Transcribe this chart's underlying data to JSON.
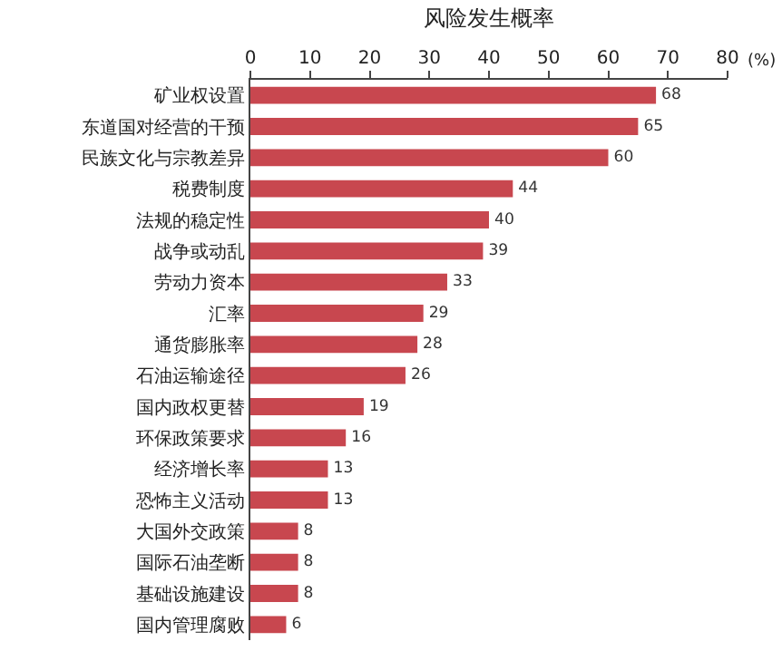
{
  "chart_data": {
    "type": "bar",
    "orientation": "horizontal",
    "title": "风险发生概率",
    "xlabel": "(%)",
    "categories": [
      "矿业权设置",
      "东道国对经营的干预",
      "民族文化与宗教差异",
      "税费制度",
      "法规的稳定性",
      "战争或动乱",
      "劳动力资本",
      "汇率",
      "通货膨胀率",
      "石油运输途径",
      "国内政权更替",
      "环保政策要求",
      "经济增长率",
      "恐怖主义活动",
      "大国外交政策",
      "国际石油垄断",
      "基础设施建设",
      "国内管理腐败"
    ],
    "values": [
      68,
      65,
      60,
      44,
      40,
      39,
      33,
      29,
      28,
      26,
      19,
      16,
      13,
      13,
      8,
      8,
      8,
      6
    ],
    "color": "#c8474f",
    "xlim": [
      0,
      80
    ],
    "xticks": [
      0,
      10,
      20,
      30,
      40,
      50,
      60,
      70,
      80
    ],
    "data_labels": true,
    "grid": false,
    "legend": false
  }
}
